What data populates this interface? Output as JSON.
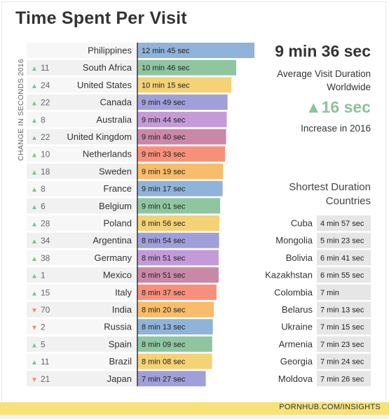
{
  "title": "Time Spent Per Visit",
  "change_axis_label": "CHANGE IN SECONDS 2016",
  "summary": {
    "average": "9 min 36 sec",
    "average_label_1": "Average Visit Duration",
    "average_label_2": "Worldwide",
    "increase": "16 sec",
    "increase_label": "Increase in 2016"
  },
  "shortest": {
    "title_1": "Shortest Duration",
    "title_2": "Countries",
    "rows": [
      {
        "country": "Cuba",
        "duration": "4 min 57 sec"
      },
      {
        "country": "Mongolia",
        "duration": "5 min 23 sec"
      },
      {
        "country": "Bolivia",
        "duration": "6 min 41 sec"
      },
      {
        "country": "Kazakhstan",
        "duration": "6 min 55 sec"
      },
      {
        "country": "Colombia",
        "duration": "7 min"
      },
      {
        "country": "Belarus",
        "duration": "7 min 13 sec"
      },
      {
        "country": "Ukraine",
        "duration": "7 min 15 sec"
      },
      {
        "country": "Armenia",
        "duration": "7 min 23 sec"
      },
      {
        "country": "Georgia",
        "duration": "7 min 24 sec"
      },
      {
        "country": "Moldova",
        "duration": "7 min 26 sec"
      }
    ]
  },
  "footer": "PORNHUB.COM/INSIGHTS",
  "colors": {
    "up": "#7fbf8e",
    "down": "#f08a6e",
    "bars": [
      "#8fb3d9",
      "#8fc6a0",
      "#f4d276",
      "#9f9fd9",
      "#c49ad8",
      "#c988a8",
      "#f7907a",
      "#f8bc6a"
    ]
  },
  "chart_data": {
    "type": "bar",
    "title": "Time Spent Per Visit",
    "unit": "seconds",
    "categories": [
      "Philippines",
      "South Africa",
      "United States",
      "Canada",
      "Australia",
      "United Kingdom",
      "Netherlands",
      "Sweden",
      "France",
      "Belgium",
      "Poland",
      "Argentina",
      "Germany",
      "Mexico",
      "Italy",
      "India",
      "Russia",
      "Spain",
      "Brazil",
      "Japan"
    ],
    "values": [
      765,
      646,
      615,
      589,
      584,
      580,
      573,
      559,
      557,
      541,
      536,
      534,
      531,
      531,
      517,
      500,
      493,
      489,
      488,
      447
    ],
    "labels": [
      "12 min 45 sec",
      "10 min 46 sec",
      "10 min 15 sec",
      "9 min 49 sec",
      "9 min 44 sec",
      "9 min 40 sec",
      "9 min 33 sec",
      "9 min 19 sec",
      "9 min 17 sec",
      "9 min 01 sec",
      "8 min 56 sec",
      "8 min 54 sec",
      "8 min 51 sec",
      "8 min 51 sec",
      "8 min 37 sec",
      "8 min 20 sec",
      "8 min 13 sec",
      "8 min 09 sec",
      "8 min 08 sec",
      "7 min 27 sec"
    ],
    "change_2016": [
      null,
      11,
      24,
      22,
      8,
      22,
      10,
      18,
      8,
      6,
      28,
      34,
      38,
      1,
      15,
      -70,
      -2,
      5,
      11,
      -21
    ],
    "shortest_seconds": [
      297,
      323,
      401,
      415,
      420,
      433,
      435,
      443,
      444,
      446
    ]
  }
}
